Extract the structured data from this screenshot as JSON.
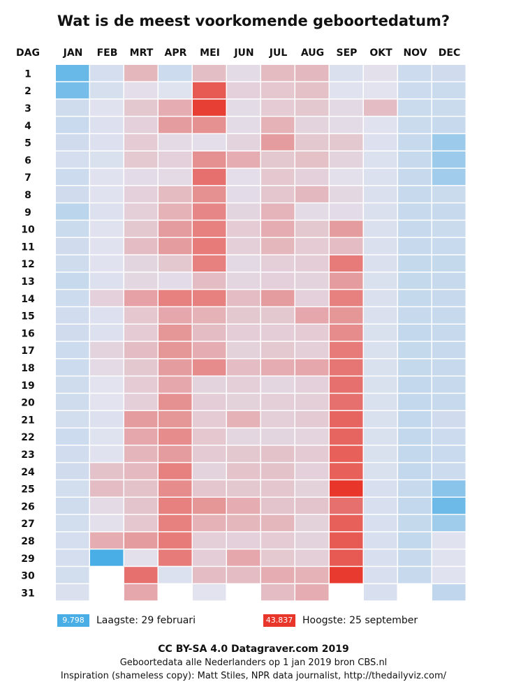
{
  "title": "Wat is de meest voorkomende geboortedatum?",
  "chart_data": {
    "type": "heatmap",
    "row_header": "DAG",
    "columns": [
      "JAN",
      "FEB",
      "MRT",
      "APR",
      "MEI",
      "JUN",
      "JUL",
      "AUG",
      "SEP",
      "OKT",
      "NOV",
      "DEC"
    ],
    "rows": [
      "1",
      "2",
      "3",
      "4",
      "5",
      "6",
      "7",
      "8",
      "9",
      "10",
      "11",
      "12",
      "13",
      "14",
      "15",
      "16",
      "17",
      "18",
      "19",
      "20",
      "21",
      "22",
      "23",
      "24",
      "25",
      "26",
      "27",
      "28",
      "29",
      "30",
      "31"
    ],
    "value_range": [
      9798,
      43837
    ],
    "color_low": "#4aaee6",
    "color_mid": "#e3e3ef",
    "color_high": "#e8362b",
    "values": [
      [
        13500,
        26300,
        32000,
        25300,
        31400,
        28700,
        31700,
        31900,
        27000,
        28300,
        25400,
        25700
      ],
      [
        15000,
        26500,
        28500,
        27500,
        40500,
        29700,
        30600,
        31200,
        27700,
        27900,
        25400,
        25200
      ],
      [
        25500,
        27600,
        30500,
        33000,
        43000,
        28700,
        30200,
        30500,
        28900,
        31500,
        25200,
        25200
      ],
      [
        25000,
        27300,
        29700,
        34500,
        35500,
        28700,
        32500,
        29500,
        28700,
        27700,
        25200,
        24700
      ],
      [
        25700,
        27300,
        30200,
        28800,
        28500,
        29500,
        34500,
        30500,
        30500,
        27300,
        24700,
        19500
      ],
      [
        26200,
        26800,
        30400,
        29700,
        35500,
        33000,
        30500,
        31200,
        29500,
        27200,
        24500,
        19500
      ],
      [
        25400,
        27600,
        28600,
        28800,
        38500,
        28500,
        30600,
        29700,
        28300,
        27200,
        24700,
        20200
      ],
      [
        25700,
        27800,
        29700,
        31700,
        35500,
        28600,
        30700,
        31900,
        29100,
        27100,
        24600,
        25200
      ],
      [
        23200,
        27300,
        29900,
        32500,
        36500,
        29300,
        32300,
        28700,
        28600,
        27100,
        24600,
        24700
      ],
      [
        25200,
        27700,
        30500,
        34500,
        37000,
        30200,
        33000,
        30500,
        34500,
        27100,
        24700,
        25200
      ],
      [
        25700,
        27700,
        31500,
        34500,
        37500,
        29900,
        32000,
        30200,
        31500,
        27100,
        24600,
        24800
      ],
      [
        25500,
        27700,
        29300,
        30500,
        37000,
        28900,
        29800,
        30000,
        37500,
        26900,
        24400,
        24400
      ],
      [
        24700,
        27300,
        29100,
        28600,
        31500,
        29200,
        29700,
        29500,
        34500,
        26800,
        24400,
        24600
      ],
      [
        25300,
        29700,
        34000,
        37000,
        37000,
        31500,
        34500,
        29700,
        37000,
        26900,
        24400,
        24700
      ],
      [
        25800,
        27300,
        30600,
        33500,
        32500,
        30500,
        30500,
        33500,
        35000,
        27000,
        24500,
        24700
      ],
      [
        25700,
        27300,
        30200,
        35000,
        31500,
        30000,
        30000,
        30200,
        36000,
        26800,
        24300,
        24500
      ],
      [
        25400,
        29500,
        31500,
        35000,
        33000,
        29600,
        30400,
        29800,
        37500,
        26800,
        24400,
        24700
      ],
      [
        25400,
        28800,
        30500,
        34500,
        36000,
        31500,
        33000,
        33500,
        38000,
        26800,
        24400,
        24700
      ],
      [
        25600,
        28000,
        30200,
        33500,
        29500,
        29800,
        29200,
        29700,
        38500,
        26800,
        24300,
        24600
      ],
      [
        25600,
        27900,
        29900,
        35500,
        30000,
        29600,
        29800,
        29900,
        38500,
        26800,
        24300,
        24500
      ],
      [
        26000,
        27300,
        34500,
        35000,
        30200,
        32500,
        29900,
        30300,
        39500,
        26800,
        24300,
        25700
      ],
      [
        25400,
        27500,
        33500,
        36000,
        30600,
        29200,
        29300,
        29400,
        39500,
        26800,
        24200,
        25400
      ],
      [
        25800,
        27600,
        32200,
        34500,
        30300,
        30500,
        31000,
        30300,
        40000,
        26800,
        24200,
        25000
      ],
      [
        25700,
        31000,
        31800,
        37000,
        29500,
        30900,
        31000,
        29700,
        40000,
        26800,
        24200,
        25400
      ],
      [
        26000,
        31500,
        31000,
        36000,
        30700,
        30500,
        30700,
        29600,
        43837,
        26700,
        24500,
        17500
      ],
      [
        25600,
        28800,
        30800,
        37000,
        35000,
        33000,
        30800,
        30800,
        38500,
        26700,
        24200,
        14000
      ],
      [
        26000,
        28300,
        30600,
        37000,
        32500,
        32000,
        32000,
        29600,
        40000,
        26700,
        24400,
        20000
      ],
      [
        26300,
        33000,
        34500,
        37500,
        29900,
        29700,
        30200,
        29500,
        40500,
        26700,
        24100,
        27700
      ],
      [
        26300,
        9798,
        28300,
        37500,
        30000,
        33500,
        30400,
        29900,
        40500,
        26700,
        24500,
        27800
      ],
      [
        26000,
        null,
        38500,
        27200,
        31500,
        31500,
        33000,
        32500,
        43500,
        26700,
        24700,
        27800
      ],
      [
        27000,
        null,
        33500,
        null,
        28000,
        null,
        31500,
        33000,
        null,
        26700,
        null,
        23700
      ]
    ]
  },
  "legend": {
    "low_value": "9.798",
    "low_label": "Laagste: 29 februari",
    "high_value": "43.837",
    "high_label": "Hoogste: 25 september"
  },
  "footer": {
    "line1": "CC BY-SA 4.0 Datagraver.com 2019",
    "line2": "Geboortedata alle Nederlanders op 1 jan 2019 bron CBS.nl",
    "line3": "Inspiration (shameless copy): Matt Stiles, NPR data journalist, http://thedailyviz.com/"
  }
}
